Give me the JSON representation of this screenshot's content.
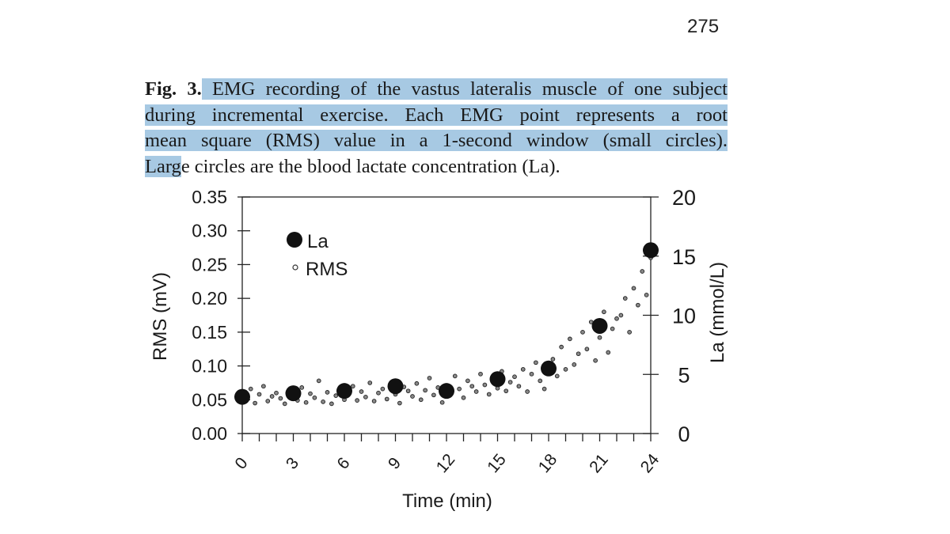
{
  "page_number": "275",
  "caption": {
    "label": "Fig. 3.",
    "line1": " EMG recording of the vastus lateralis muscle of one subject",
    "line2": "during incremental exercise. Each EMG point represents a root",
    "line3": "mean square (RMS) value in a 1-second window (small circles).",
    "line4_highlighted": "Larg",
    "line4_rest": "e circles are the blood lactate concentration (La).",
    "highlight_color": "#a7c9e3"
  },
  "chart_data": {
    "type": "scatter",
    "xlabel": "Time (min)",
    "ylabel": "RMS (mV)",
    "y2label": "La (mmol/L)",
    "xlim": [
      0,
      24
    ],
    "ylim": [
      0,
      0.35
    ],
    "y2lim": [
      0,
      20
    ],
    "xticks": [
      "0",
      "3",
      "6",
      "9",
      "12",
      "15",
      "18",
      "21",
      "24"
    ],
    "yticks": [
      "0.00",
      "0.05",
      "0.10",
      "0.15",
      "0.20",
      "0.25",
      "0.30",
      "0.35"
    ],
    "y2ticks": [
      "0",
      "5",
      "10",
      "15",
      "20"
    ],
    "legend": {
      "position": "top-left",
      "entries": [
        "La",
        "RMS"
      ]
    },
    "series": [
      {
        "name": "La",
        "axis": "right",
        "marker": "large-filled-circle",
        "x": [
          0,
          3,
          6,
          9,
          12,
          15,
          18,
          21,
          24
        ],
        "y": [
          3.1,
          3.4,
          3.6,
          4.0,
          3.6,
          4.6,
          5.5,
          9.1,
          15.5
        ]
      },
      {
        "name": "RMS",
        "axis": "left",
        "marker": "small-open-circle",
        "x_start": 0,
        "x_step": 0.25,
        "y": [
          0.062,
          0.05,
          0.066,
          0.045,
          0.058,
          0.07,
          0.048,
          0.055,
          0.06,
          0.052,
          0.044,
          0.063,
          0.057,
          0.049,
          0.068,
          0.046,
          0.059,
          0.053,
          0.078,
          0.047,
          0.061,
          0.044,
          0.056,
          0.065,
          0.05,
          0.058,
          0.07,
          0.049,
          0.062,
          0.054,
          0.075,
          0.048,
          0.06,
          0.066,
          0.051,
          0.072,
          0.058,
          0.045,
          0.069,
          0.063,
          0.055,
          0.074,
          0.05,
          0.064,
          0.082,
          0.057,
          0.068,
          0.046,
          0.071,
          0.06,
          0.085,
          0.066,
          0.053,
          0.078,
          0.07,
          0.062,
          0.088,
          0.072,
          0.058,
          0.081,
          0.067,
          0.092,
          0.063,
          0.076,
          0.084,
          0.07,
          0.095,
          0.062,
          0.088,
          0.105,
          0.078,
          0.066,
          0.099,
          0.11,
          0.085,
          0.128,
          0.095,
          0.14,
          0.102,
          0.118,
          0.15,
          0.125,
          0.165,
          0.108,
          0.142,
          0.18,
          0.12,
          0.155,
          0.17,
          0.175,
          0.2,
          0.15,
          0.215,
          0.19,
          0.24,
          0.205,
          0.26
        ]
      }
    ]
  }
}
